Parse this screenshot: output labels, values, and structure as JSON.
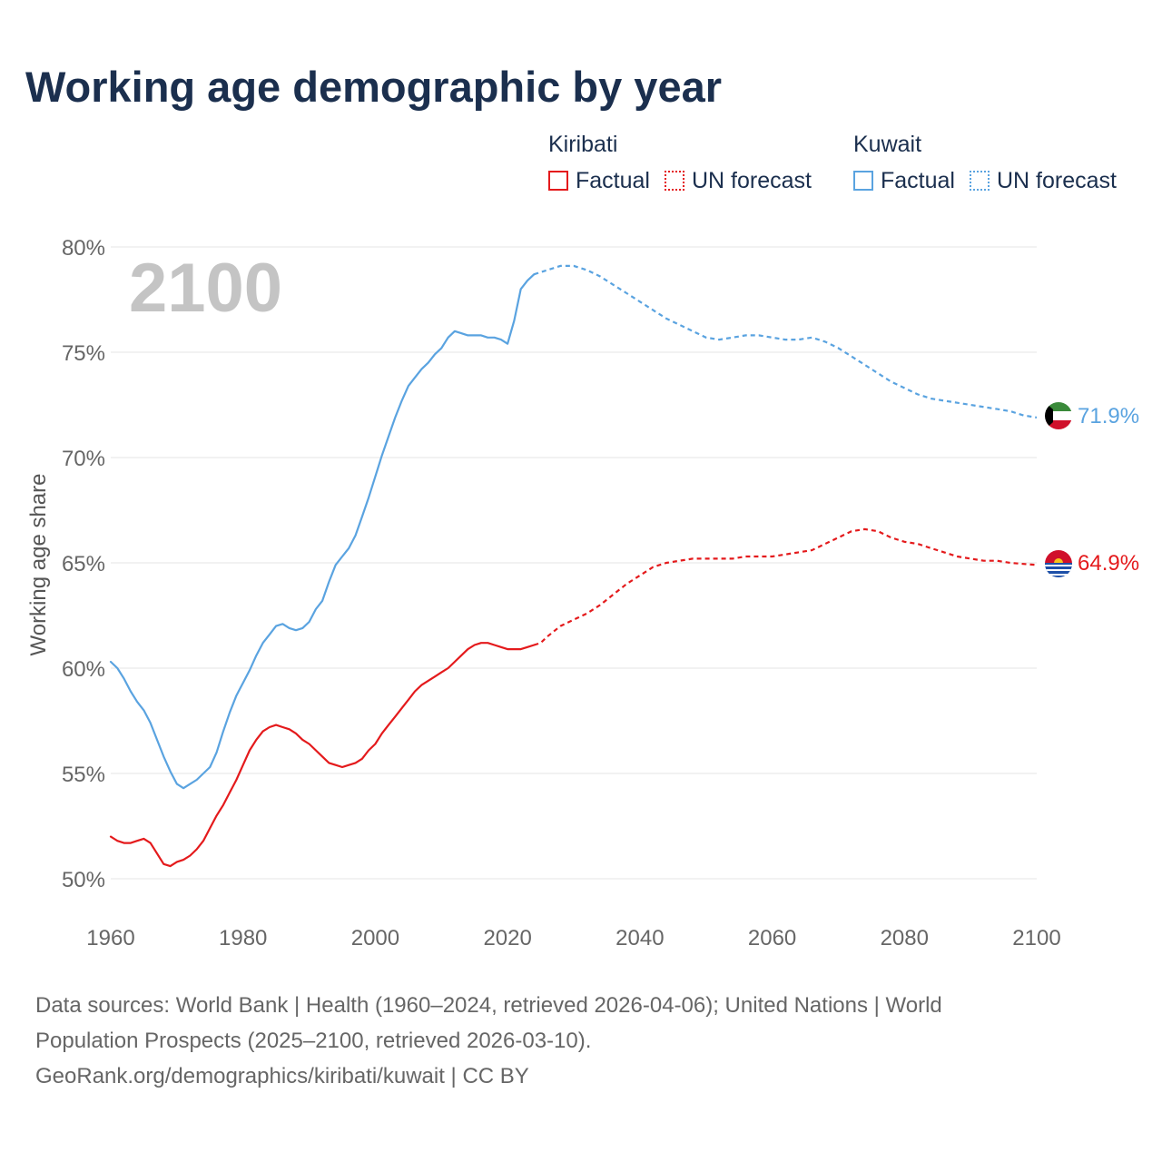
{
  "title": "Working age demographic by year",
  "legend": {
    "groups": [
      {
        "name": "Kiribati",
        "factual_label": "Factual",
        "forecast_label": "UN forecast",
        "color": "#e41a1c"
      },
      {
        "name": "Kuwait",
        "factual_label": "Factual",
        "forecast_label": "UN forecast",
        "color": "#5aa3e0"
      }
    ]
  },
  "year_label": "2100",
  "footer": {
    "line1": "Data sources: World Bank | Health (1960–2024, retrieved 2026-04-06); United Nations | World",
    "line2": "Population Prospects (2025–2100, retrieved 2026-03-10).",
    "line3": "GeoRank.org/demographics/kiribati/kuwait | CC BY"
  },
  "chart_data": {
    "type": "line",
    "title": "Working age demographic by year",
    "xlabel": "",
    "ylabel": "Working age share",
    "xlim": [
      1960,
      2100
    ],
    "ylim": [
      50,
      80
    ],
    "x_ticks": [
      1960,
      1980,
      2000,
      2020,
      2040,
      2060,
      2080,
      2100
    ],
    "y_ticks": [
      50,
      55,
      60,
      65,
      70,
      75,
      80
    ],
    "y_tick_labels": [
      "50%",
      "55%",
      "60%",
      "65%",
      "70%",
      "75%",
      "80%"
    ],
    "x_tick_labels": [
      "1960",
      "1980",
      "2000",
      "2020",
      "2040",
      "2060",
      "2080",
      "2100"
    ],
    "forecast_start": 2024,
    "series": [
      {
        "name": "Kiribati",
        "color": "#e41a1c",
        "end_label": "64.9%",
        "points": [
          [
            1960,
            52.0
          ],
          [
            1961,
            51.8
          ],
          [
            1962,
            51.7
          ],
          [
            1963,
            51.7
          ],
          [
            1964,
            51.8
          ],
          [
            1965,
            51.9
          ],
          [
            1966,
            51.7
          ],
          [
            1967,
            51.2
          ],
          [
            1968,
            50.7
          ],
          [
            1969,
            50.6
          ],
          [
            1970,
            50.8
          ],
          [
            1971,
            50.9
          ],
          [
            1972,
            51.1
          ],
          [
            1973,
            51.4
          ],
          [
            1974,
            51.8
          ],
          [
            1975,
            52.4
          ],
          [
            1976,
            53.0
          ],
          [
            1977,
            53.5
          ],
          [
            1978,
            54.1
          ],
          [
            1979,
            54.7
          ],
          [
            1980,
            55.4
          ],
          [
            1981,
            56.1
          ],
          [
            1982,
            56.6
          ],
          [
            1983,
            57.0
          ],
          [
            1984,
            57.2
          ],
          [
            1985,
            57.3
          ],
          [
            1986,
            57.2
          ],
          [
            1987,
            57.1
          ],
          [
            1988,
            56.9
          ],
          [
            1989,
            56.6
          ],
          [
            1990,
            56.4
          ],
          [
            1991,
            56.1
          ],
          [
            1992,
            55.8
          ],
          [
            1993,
            55.5
          ],
          [
            1994,
            55.4
          ],
          [
            1995,
            55.3
          ],
          [
            1996,
            55.4
          ],
          [
            1997,
            55.5
          ],
          [
            1998,
            55.7
          ],
          [
            1999,
            56.1
          ],
          [
            2000,
            56.4
          ],
          [
            2001,
            56.9
          ],
          [
            2002,
            57.3
          ],
          [
            2003,
            57.7
          ],
          [
            2004,
            58.1
          ],
          [
            2005,
            58.5
          ],
          [
            2006,
            58.9
          ],
          [
            2007,
            59.2
          ],
          [
            2008,
            59.4
          ],
          [
            2009,
            59.6
          ],
          [
            2010,
            59.8
          ],
          [
            2011,
            60.0
          ],
          [
            2012,
            60.3
          ],
          [
            2013,
            60.6
          ],
          [
            2014,
            60.9
          ],
          [
            2015,
            61.1
          ],
          [
            2016,
            61.2
          ],
          [
            2017,
            61.2
          ],
          [
            2018,
            61.1
          ],
          [
            2019,
            61.0
          ],
          [
            2020,
            60.9
          ],
          [
            2021,
            60.9
          ],
          [
            2022,
            60.9
          ],
          [
            2023,
            61.0
          ],
          [
            2024,
            61.1
          ],
          [
            2025,
            61.2
          ],
          [
            2026,
            61.5
          ],
          [
            2028,
            62.0
          ],
          [
            2030,
            62.3
          ],
          [
            2032,
            62.6
          ],
          [
            2034,
            63.0
          ],
          [
            2036,
            63.5
          ],
          [
            2038,
            64.0
          ],
          [
            2040,
            64.4
          ],
          [
            2042,
            64.8
          ],
          [
            2044,
            65.0
          ],
          [
            2046,
            65.1
          ],
          [
            2048,
            65.2
          ],
          [
            2050,
            65.2
          ],
          [
            2052,
            65.2
          ],
          [
            2054,
            65.2
          ],
          [
            2056,
            65.3
          ],
          [
            2058,
            65.3
          ],
          [
            2060,
            65.3
          ],
          [
            2062,
            65.4
          ],
          [
            2064,
            65.5
          ],
          [
            2066,
            65.6
          ],
          [
            2068,
            65.9
          ],
          [
            2070,
            66.2
          ],
          [
            2072,
            66.5
          ],
          [
            2074,
            66.6
          ],
          [
            2076,
            66.5
          ],
          [
            2078,
            66.2
          ],
          [
            2080,
            66.0
          ],
          [
            2082,
            65.9
          ],
          [
            2084,
            65.7
          ],
          [
            2086,
            65.5
          ],
          [
            2088,
            65.3
          ],
          [
            2090,
            65.2
          ],
          [
            2092,
            65.1
          ],
          [
            2094,
            65.1
          ],
          [
            2096,
            65.0
          ],
          [
            2098,
            64.95
          ],
          [
            2100,
            64.9
          ]
        ]
      },
      {
        "name": "Kuwait",
        "color": "#5aa3e0",
        "end_label": "71.9%",
        "points": [
          [
            1960,
            60.3
          ],
          [
            1961,
            60.0
          ],
          [
            1962,
            59.5
          ],
          [
            1963,
            58.9
          ],
          [
            1964,
            58.4
          ],
          [
            1965,
            58.0
          ],
          [
            1966,
            57.4
          ],
          [
            1967,
            56.6
          ],
          [
            1968,
            55.8
          ],
          [
            1969,
            55.1
          ],
          [
            1970,
            54.5
          ],
          [
            1971,
            54.3
          ],
          [
            1972,
            54.5
          ],
          [
            1973,
            54.7
          ],
          [
            1974,
            55.0
          ],
          [
            1975,
            55.3
          ],
          [
            1976,
            56.0
          ],
          [
            1977,
            57.0
          ],
          [
            1978,
            57.9
          ],
          [
            1979,
            58.7
          ],
          [
            1980,
            59.3
          ],
          [
            1981,
            59.9
          ],
          [
            1982,
            60.6
          ],
          [
            1983,
            61.2
          ],
          [
            1984,
            61.6
          ],
          [
            1985,
            62.0
          ],
          [
            1986,
            62.1
          ],
          [
            1987,
            61.9
          ],
          [
            1988,
            61.8
          ],
          [
            1989,
            61.9
          ],
          [
            1990,
            62.2
          ],
          [
            1991,
            62.8
          ],
          [
            1992,
            63.2
          ],
          [
            1993,
            64.1
          ],
          [
            1994,
            64.9
          ],
          [
            1995,
            65.3
          ],
          [
            1996,
            65.7
          ],
          [
            1997,
            66.3
          ],
          [
            1998,
            67.2
          ],
          [
            1999,
            68.1
          ],
          [
            2000,
            69.1
          ],
          [
            2001,
            70.1
          ],
          [
            2002,
            71.0
          ],
          [
            2003,
            71.9
          ],
          [
            2004,
            72.7
          ],
          [
            2005,
            73.4
          ],
          [
            2006,
            73.8
          ],
          [
            2007,
            74.2
          ],
          [
            2008,
            74.5
          ],
          [
            2009,
            74.9
          ],
          [
            2010,
            75.2
          ],
          [
            2011,
            75.7
          ],
          [
            2012,
            76.0
          ],
          [
            2013,
            75.9
          ],
          [
            2014,
            75.8
          ],
          [
            2015,
            75.8
          ],
          [
            2016,
            75.8
          ],
          [
            2017,
            75.7
          ],
          [
            2018,
            75.7
          ],
          [
            2019,
            75.6
          ],
          [
            2020,
            75.4
          ],
          [
            2021,
            76.5
          ],
          [
            2022,
            78.0
          ],
          [
            2023,
            78.4
          ],
          [
            2024,
            78.7
          ],
          [
            2025,
            78.8
          ],
          [
            2026,
            78.9
          ],
          [
            2028,
            79.1
          ],
          [
            2030,
            79.1
          ],
          [
            2032,
            78.9
          ],
          [
            2034,
            78.6
          ],
          [
            2036,
            78.2
          ],
          [
            2038,
            77.8
          ],
          [
            2040,
            77.4
          ],
          [
            2042,
            77.0
          ],
          [
            2044,
            76.6
          ],
          [
            2046,
            76.3
          ],
          [
            2048,
            76.0
          ],
          [
            2050,
            75.7
          ],
          [
            2052,
            75.6
          ],
          [
            2054,
            75.7
          ],
          [
            2056,
            75.8
          ],
          [
            2058,
            75.8
          ],
          [
            2060,
            75.7
          ],
          [
            2062,
            75.6
          ],
          [
            2064,
            75.6
          ],
          [
            2066,
            75.7
          ],
          [
            2068,
            75.5
          ],
          [
            2070,
            75.2
          ],
          [
            2072,
            74.8
          ],
          [
            2074,
            74.4
          ],
          [
            2076,
            74.0
          ],
          [
            2078,
            73.6
          ],
          [
            2080,
            73.3
          ],
          [
            2082,
            73.0
          ],
          [
            2084,
            72.8
          ],
          [
            2086,
            72.7
          ],
          [
            2088,
            72.6
          ],
          [
            2090,
            72.5
          ],
          [
            2092,
            72.4
          ],
          [
            2094,
            72.3
          ],
          [
            2096,
            72.2
          ],
          [
            2098,
            72.0
          ],
          [
            2100,
            71.9
          ]
        ]
      }
    ]
  }
}
